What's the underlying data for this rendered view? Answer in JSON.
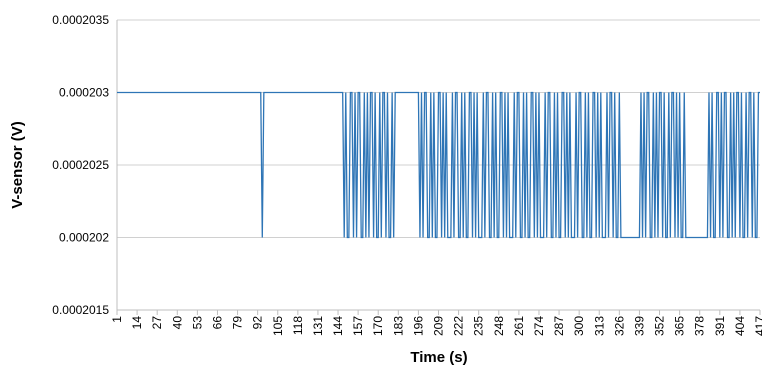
{
  "chart_data": {
    "type": "line",
    "y_label": "V-sensor (V)",
    "x_label": "Time (s)",
    "grid": true,
    "ylim": [
      0.0002015,
      0.0002035
    ],
    "yticks": [
      0.0002015,
      0.000202,
      0.0002025,
      0.000203,
      0.0002035
    ],
    "xlim": [
      1,
      417
    ],
    "xticks": [
      1,
      14,
      27,
      40,
      53,
      66,
      79,
      92,
      105,
      118,
      131,
      144,
      157,
      170,
      183,
      196,
      209,
      222,
      235,
      248,
      261,
      274,
      287,
      300,
      313,
      326,
      339,
      352,
      365,
      378,
      391,
      404,
      417
    ],
    "x": [
      1,
      2,
      3,
      4,
      5,
      6,
      7,
      8,
      9,
      10,
      11,
      12,
      13,
      14,
      15,
      16,
      17,
      18,
      19,
      20,
      21,
      22,
      23,
      24,
      25,
      26,
      27,
      28,
      29,
      30,
      31,
      32,
      33,
      34,
      35,
      36,
      37,
      38,
      39,
      40,
      41,
      42,
      43,
      44,
      45,
      46,
      47,
      48,
      49,
      50,
      51,
      52,
      53,
      54,
      55,
      56,
      57,
      58,
      59,
      60,
      61,
      62,
      63,
      64,
      65,
      66,
      67,
      68,
      69,
      70,
      71,
      72,
      73,
      74,
      75,
      76,
      77,
      78,
      79,
      80,
      81,
      82,
      83,
      84,
      85,
      86,
      87,
      88,
      89,
      90,
      91,
      92,
      93,
      94,
      95,
      96,
      97,
      98,
      99,
      100,
      101,
      102,
      103,
      104,
      105,
      106,
      107,
      108,
      109,
      110,
      111,
      112,
      113,
      114,
      115,
      116,
      117,
      118,
      119,
      120,
      121,
      122,
      123,
      124,
      125,
      126,
      127,
      128,
      129,
      130,
      131,
      132,
      133,
      134,
      135,
      136,
      137,
      138,
      139,
      140,
      141,
      142,
      143,
      144,
      145,
      146,
      147,
      148,
      149,
      150,
      151,
      152,
      153,
      154,
      155,
      156,
      157,
      158,
      159,
      160,
      161,
      162,
      163,
      164,
      165,
      166,
      167,
      168,
      169,
      170,
      171,
      172,
      173,
      174,
      175,
      176,
      177,
      178,
      179,
      180,
      181,
      182,
      183,
      184,
      185,
      186,
      187,
      188,
      189,
      190,
      191,
      192,
      193,
      194,
      195,
      196,
      197,
      198,
      199,
      200,
      201,
      202,
      203,
      204,
      205,
      206,
      207,
      208,
      209,
      210,
      211,
      212,
      213,
      214,
      215,
      216,
      217,
      218,
      219,
      220,
      221,
      222,
      223,
      224,
      225,
      226,
      227,
      228,
      229,
      230,
      231,
      232,
      233,
      234,
      235,
      236,
      237,
      238,
      239,
      240,
      241,
      242,
      243,
      244,
      245,
      246,
      247,
      248,
      249,
      250,
      251,
      252,
      253,
      254,
      255,
      256,
      257,
      258,
      259,
      260,
      261,
      262,
      263,
      264,
      265,
      266,
      267,
      268,
      269,
      270,
      271,
      272,
      273,
      274,
      275,
      276,
      277,
      278,
      279,
      280,
      281,
      282,
      283,
      284,
      285,
      286,
      287,
      288,
      289,
      290,
      291,
      292,
      293,
      294,
      295,
      296,
      297,
      298,
      299,
      300,
      301,
      302,
      303,
      304,
      305,
      306,
      307,
      308,
      309,
      310,
      311,
      312,
      313,
      314,
      315,
      316,
      317,
      318,
      319,
      320,
      321,
      322,
      323,
      324,
      325,
      326,
      327,
      328,
      329,
      330,
      331,
      332,
      333,
      334,
      335,
      336,
      337,
      338,
      339,
      340,
      341,
      342,
      343,
      344,
      345,
      346,
      347,
      348,
      349,
      350,
      351,
      352,
      353,
      354,
      355,
      356,
      357,
      358,
      359,
      360,
      361,
      362,
      363,
      364,
      365,
      366,
      367,
      368,
      369,
      370,
      371,
      372,
      373,
      374,
      375,
      376,
      377,
      378,
      379,
      380,
      381,
      382,
      383,
      384,
      385,
      386,
      387,
      388,
      389,
      390,
      391,
      392,
      393,
      394,
      395,
      396,
      397,
      398,
      399,
      400,
      401,
      402,
      403,
      404,
      405,
      406,
      407,
      408,
      409,
      410,
      411,
      412,
      413,
      414,
      415,
      416,
      417
    ],
    "series": [
      {
        "name": "V-sensor",
        "color": "#2e75b6",
        "values": [
          0.000203,
          0.000203,
          0.000203,
          0.000203,
          0.000203,
          0.000203,
          0.000203,
          0.000203,
          0.000203,
          0.000203,
          0.000203,
          0.000203,
          0.000203,
          0.000203,
          0.000203,
          0.000203,
          0.000203,
          0.000203,
          0.000203,
          0.000203,
          0.000203,
          0.000203,
          0.000203,
          0.000203,
          0.000203,
          0.000203,
          0.000203,
          0.000203,
          0.000203,
          0.000203,
          0.000203,
          0.000203,
          0.000203,
          0.000203,
          0.000203,
          0.000203,
          0.000203,
          0.000203,
          0.000203,
          0.000203,
          0.000203,
          0.000203,
          0.000203,
          0.000203,
          0.000203,
          0.000203,
          0.000203,
          0.000203,
          0.000203,
          0.000203,
          0.000203,
          0.000203,
          0.000203,
          0.000203,
          0.000203,
          0.000203,
          0.000203,
          0.000203,
          0.000203,
          0.000203,
          0.000203,
          0.000203,
          0.000203,
          0.000203,
          0.000203,
          0.000203,
          0.000203,
          0.000203,
          0.000203,
          0.000203,
          0.000203,
          0.000203,
          0.000203,
          0.000203,
          0.000203,
          0.000203,
          0.000203,
          0.000203,
          0.000203,
          0.000203,
          0.000203,
          0.000203,
          0.000203,
          0.000203,
          0.000203,
          0.000203,
          0.000203,
          0.000203,
          0.000203,
          0.000203,
          0.000203,
          0.000203,
          0.000203,
          0.000203,
          0.000202,
          0.000203,
          0.000203,
          0.000203,
          0.000203,
          0.000203,
          0.000203,
          0.000203,
          0.000203,
          0.000203,
          0.000203,
          0.000203,
          0.000203,
          0.000203,
          0.000203,
          0.000203,
          0.000203,
          0.000203,
          0.000203,
          0.000203,
          0.000203,
          0.000203,
          0.000203,
          0.000203,
          0.000203,
          0.000203,
          0.000203,
          0.000203,
          0.000203,
          0.000203,
          0.000203,
          0.000203,
          0.000203,
          0.000203,
          0.000203,
          0.000203,
          0.000203,
          0.000203,
          0.000203,
          0.000203,
          0.000203,
          0.000203,
          0.000203,
          0.000203,
          0.000203,
          0.000203,
          0.000203,
          0.000203,
          0.000203,
          0.000203,
          0.000203,
          0.000203,
          0.000203,
          0.000202,
          0.000203,
          0.000202,
          0.000202,
          0.000203,
          0.000203,
          0.000202,
          0.000203,
          0.000202,
          0.000203,
          0.000203,
          0.000202,
          0.000202,
          0.000203,
          0.000202,
          0.000203,
          0.000202,
          0.000203,
          0.000203,
          0.000202,
          0.000203,
          0.000202,
          0.000202,
          0.000203,
          0.000202,
          0.000203,
          0.000203,
          0.000202,
          0.000203,
          0.000202,
          0.000202,
          0.000203,
          0.000202,
          0.000203,
          0.000203,
          0.000203,
          0.000203,
          0.000203,
          0.000203,
          0.000203,
          0.000203,
          0.000203,
          0.000203,
          0.000203,
          0.000203,
          0.000203,
          0.000203,
          0.000203,
          0.000203,
          0.000202,
          0.000203,
          0.000202,
          0.000203,
          0.000203,
          0.000202,
          0.000202,
          0.000203,
          0.000202,
          0.000203,
          0.000202,
          0.000202,
          0.000203,
          0.000203,
          0.000202,
          0.000203,
          0.000202,
          0.000203,
          0.000202,
          0.000202,
          0.000202,
          0.000203,
          0.000202,
          0.000203,
          0.000203,
          0.000202,
          0.000202,
          0.000203,
          0.000202,
          0.000203,
          0.000202,
          0.000202,
          0.000203,
          0.000203,
          0.000202,
          0.000203,
          0.000202,
          0.000203,
          0.000202,
          0.000202,
          0.000202,
          0.000203,
          0.000202,
          0.000203,
          0.000203,
          0.000202,
          0.000202,
          0.000203,
          0.000202,
          0.000203,
          0.000202,
          0.000202,
          0.000203,
          0.000203,
          0.000202,
          0.000203,
          0.000202,
          0.000203,
          0.000202,
          0.000202,
          0.000202,
          0.000203,
          0.000202,
          0.000203,
          0.000203,
          0.000202,
          0.000202,
          0.000203,
          0.000202,
          0.000203,
          0.000202,
          0.000202,
          0.000203,
          0.000203,
          0.000202,
          0.000203,
          0.000202,
          0.000203,
          0.000202,
          0.000202,
          0.000202,
          0.000203,
          0.000202,
          0.000203,
          0.000203,
          0.000202,
          0.000202,
          0.000203,
          0.000202,
          0.000203,
          0.000202,
          0.000202,
          0.000203,
          0.000203,
          0.000202,
          0.000203,
          0.000202,
          0.000203,
          0.000202,
          0.000202,
          0.000202,
          0.000203,
          0.000202,
          0.000203,
          0.000203,
          0.000202,
          0.000202,
          0.000203,
          0.000202,
          0.000203,
          0.000202,
          0.000202,
          0.000203,
          0.000203,
          0.000202,
          0.000203,
          0.000202,
          0.000203,
          0.000202,
          0.000202,
          0.000202,
          0.000203,
          0.000202,
          0.000203,
          0.000203,
          0.000202,
          0.000203,
          0.000202,
          0.000202,
          0.000203,
          0.000202,
          0.000202,
          0.000202,
          0.000202,
          0.000202,
          0.000202,
          0.000202,
          0.000202,
          0.000202,
          0.000202,
          0.000202,
          0.000202,
          0.000202,
          0.000203,
          0.000202,
          0.000203,
          0.000202,
          0.000203,
          0.000203,
          0.000202,
          0.000202,
          0.000203,
          0.000202,
          0.000203,
          0.000202,
          0.000203,
          0.000203,
          0.000202,
          0.000203,
          0.000202,
          0.000202,
          0.000203,
          0.000202,
          0.000203,
          0.000203,
          0.000202,
          0.000203,
          0.000202,
          0.000203,
          0.000202,
          0.000202,
          0.000203,
          0.000202,
          0.000202,
          0.000202,
          0.000202,
          0.000202,
          0.000202,
          0.000202,
          0.000202,
          0.000202,
          0.000202,
          0.000202,
          0.000202,
          0.000202,
          0.000202,
          0.000202,
          0.000203,
          0.000202,
          0.000203,
          0.000202,
          0.000202,
          0.000203,
          0.000203,
          0.000202,
          0.000203,
          0.000202,
          0.000203,
          0.000203,
          0.000202,
          0.000202,
          0.000203,
          0.000202,
          0.000203,
          0.000202,
          0.000203,
          0.000203,
          0.000202,
          0.000203,
          0.000202,
          0.000202,
          0.000203,
          0.000202,
          0.000203,
          0.000203,
          0.000202,
          0.000203,
          0.000202,
          0.000202,
          0.000203,
          0.000203
        ]
      }
    ]
  }
}
